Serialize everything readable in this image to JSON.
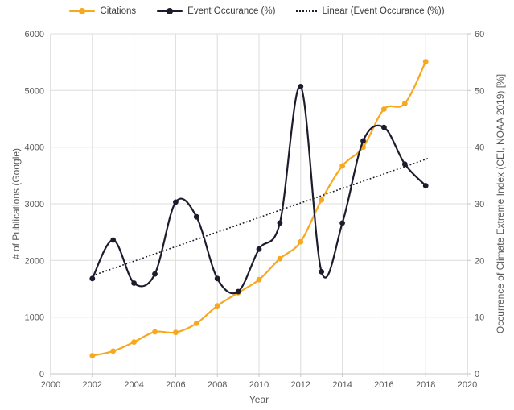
{
  "chart_data": {
    "type": "line",
    "title": "",
    "xlabel": "Year",
    "ylabel_left": "# of Publications (Google)",
    "ylabel_right": "Occurrence of Climate Extreme Index (CEI, NOAA 2019) [%]",
    "x": [
      2002,
      2003,
      2004,
      2005,
      2006,
      2007,
      2008,
      2009,
      2010,
      2011,
      2012,
      2013,
      2014,
      2015,
      2016,
      2017,
      2018
    ],
    "series": [
      {
        "name": "Citations",
        "axis": "left",
        "color": "#F7A81E",
        "marker": "circle",
        "smooth": true,
        "values": [
          320,
          400,
          560,
          740,
          730,
          890,
          1200,
          1430,
          1660,
          2030,
          2330,
          3070,
          3670,
          4000,
          4670,
          4770,
          5510
        ]
      },
      {
        "name": "Event Occurance (%)",
        "axis": "right",
        "color": "#1C1C2C",
        "marker": "circle",
        "smooth": true,
        "values": [
          16.8,
          23.6,
          16.0,
          17.6,
          30.3,
          27.7,
          16.8,
          14.5,
          22.0,
          26.6,
          50.7,
          18.0,
          26.6,
          41.1,
          43.5,
          37.0,
          33.2
        ]
      },
      {
        "name": "Linear (Event Occurance (%))",
        "axis": "right",
        "color": "#1C1C2C",
        "style": "dotted",
        "trendline": true,
        "x": [
          2002,
          2018.2
        ],
        "values": [
          17.3,
          38.1
        ]
      }
    ],
    "axes": {
      "x": {
        "min": 2000,
        "max": 2020,
        "ticks": [
          2000,
          2002,
          2004,
          2006,
          2008,
          2010,
          2012,
          2014,
          2016,
          2018,
          2020
        ]
      },
      "left": {
        "min": 0,
        "max": 6000,
        "ticks": [
          0,
          1000,
          2000,
          3000,
          4000,
          5000,
          6000
        ]
      },
      "right": {
        "min": 0,
        "max": 60,
        "ticks": [
          0,
          10,
          20,
          30,
          40,
          50,
          60
        ]
      }
    },
    "legend_position": "top",
    "grid": true,
    "colors": {
      "gridline": "#DCDCDC",
      "axisline": "#C6C6C6",
      "tick_text": "#595959",
      "legend_text": "#3B3B3B"
    }
  }
}
